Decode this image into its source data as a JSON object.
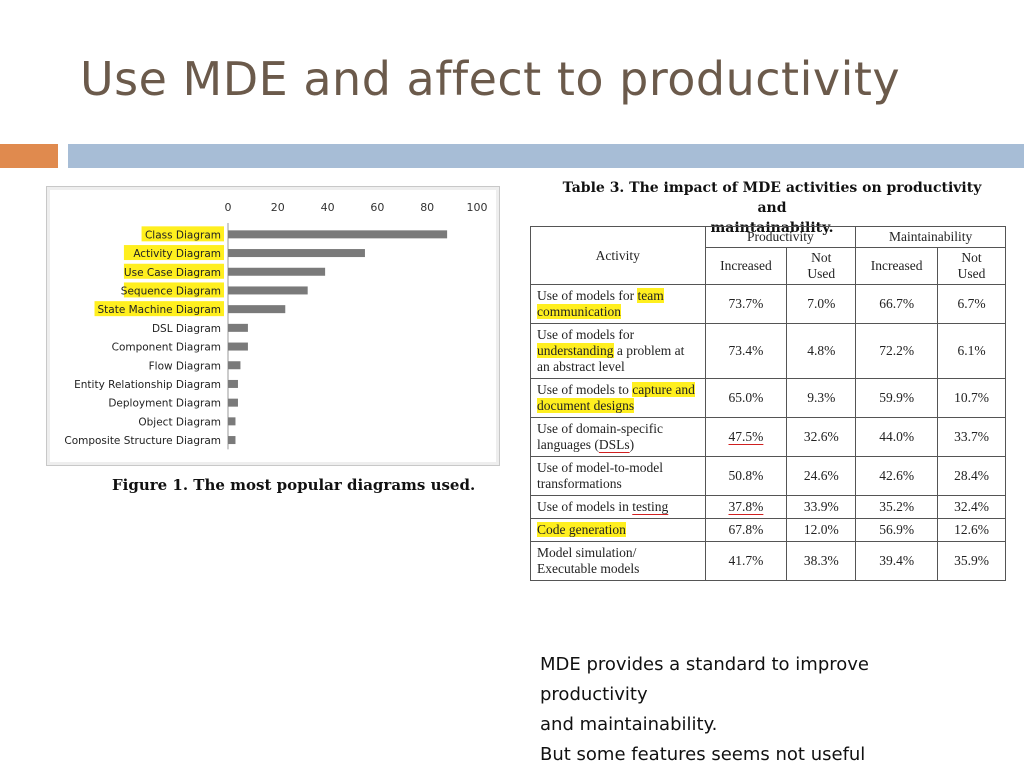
{
  "slide": {
    "title": "Use MDE and affect to productivity",
    "note_lines": [
      "MDE provides a standard to improve",
      "productivity",
      "and maintainability.",
      "But some features seems not useful"
    ]
  },
  "figure": {
    "caption": "Figure 1. The most popular diagrams used.",
    "bar_color": "#7a7a7a",
    "highlight_color": "#ffef1f"
  },
  "chart_data": {
    "type": "bar",
    "orientation": "horizontal",
    "x_ticks": [
      "0",
      "20",
      "40",
      "60",
      "80",
      "100"
    ],
    "xlim": [
      0,
      100
    ],
    "grid": false,
    "categories": [
      "Class Diagram",
      "Activity Diagram",
      "Use Case Diagram",
      "Sequence Diagram",
      "State Machine Diagram",
      "DSL Diagram",
      "Component Diagram",
      "Flow Diagram",
      "Entity Relationship Diagram",
      "Deployment Diagram",
      "Object Diagram",
      "Composite Structure Diagram"
    ],
    "values": [
      88,
      55,
      39,
      32,
      23,
      8,
      8,
      5,
      4,
      4,
      3,
      3
    ],
    "highlighted": [
      true,
      true,
      true,
      true,
      true,
      false,
      false,
      false,
      false,
      false,
      false,
      false
    ]
  },
  "table": {
    "caption_lines": [
      "Table 3. The impact of MDE activities on productivity and",
      "maintainability."
    ],
    "header": {
      "activity": "Activity",
      "productivity": "Productivity",
      "maintainability": "Maintainability",
      "increased": "Increased",
      "not_used_1": "Not",
      "not_used_2": "Used"
    },
    "rows": [
      {
        "pre": "Use of models for ",
        "hl": "team communication",
        "post": "",
        "values": [
          "73.7%",
          "7.0%",
          "66.7%",
          "6.7%"
        ],
        "ul_first": false
      },
      {
        "pre": "Use of models for ",
        "hl": "understanding",
        "post": " a problem at an abstract level",
        "values": [
          "73.4%",
          "4.8%",
          "72.2%",
          "6.1%"
        ],
        "ul_first": false
      },
      {
        "pre": "Use of models to ",
        "hl": "capture and document designs",
        "post": "",
        "values": [
          "65.0%",
          "9.3%",
          "59.9%",
          "10.7%"
        ],
        "ul_first": false
      },
      {
        "pre": "Use of domain-specific languages (",
        "hl": "",
        "ul": "DSLs",
        "post": ")",
        "values": [
          "47.5%",
          "32.6%",
          "44.0%",
          "33.7%"
        ],
        "ul_first": true
      },
      {
        "pre": "Use of model-to-model transformations",
        "hl": "",
        "post": "",
        "values": [
          "50.8%",
          "24.6%",
          "42.6%",
          "28.4%"
        ],
        "ul_first": false
      },
      {
        "pre": "Use of models in ",
        "hl": "",
        "ul": "testing",
        "post": "",
        "values": [
          "37.8%",
          "33.9%",
          "35.2%",
          "32.4%"
        ],
        "ul_first": true
      },
      {
        "pre": "",
        "hl": "Code generation",
        "post": "",
        "values": [
          "67.8%",
          "12.0%",
          "56.9%",
          "12.6%"
        ],
        "ul_first": false
      },
      {
        "pre": "Model simulation/ Executable models",
        "hl": "",
        "post": "",
        "values": [
          "41.7%",
          "38.3%",
          "39.4%",
          "35.9%"
        ],
        "ul_first": false
      }
    ]
  }
}
